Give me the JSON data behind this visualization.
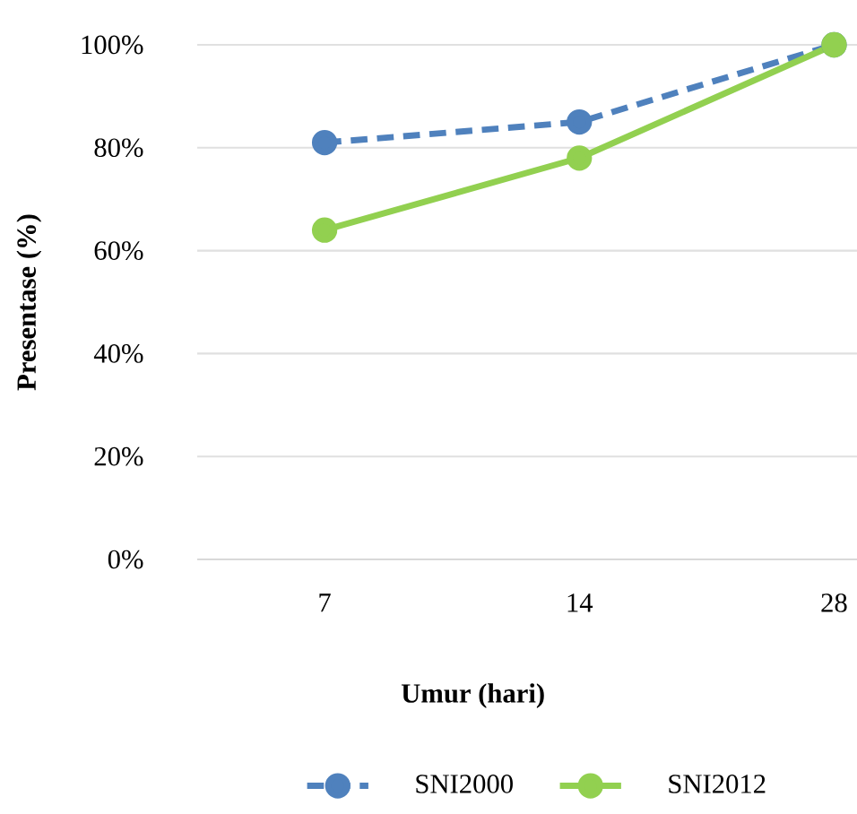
{
  "chart_data": {
    "type": "line",
    "xlabel": "Umur (hari)",
    "ylabel": "Presentase (%)",
    "categories": [
      "7",
      "14",
      "28"
    ],
    "series": [
      {
        "name": "SNI2000",
        "color": "#4f81bd",
        "line_style": "dashed",
        "values": [
          81,
          85,
          100
        ]
      },
      {
        "name": "SNI2012",
        "color": "#92d050",
        "line_style": "solid",
        "values": [
          64,
          78,
          100
        ]
      }
    ],
    "ylim": [
      0,
      100
    ],
    "yticks": [
      {
        "value": 0,
        "label": "0%"
      },
      {
        "value": 20,
        "label": "20%"
      },
      {
        "value": 40,
        "label": "40%"
      },
      {
        "value": 60,
        "label": "60%"
      },
      {
        "value": 80,
        "label": "80%"
      },
      {
        "value": 100,
        "label": "100%"
      }
    ],
    "grid": "y",
    "legend": "bottom",
    "marker": "circle"
  }
}
